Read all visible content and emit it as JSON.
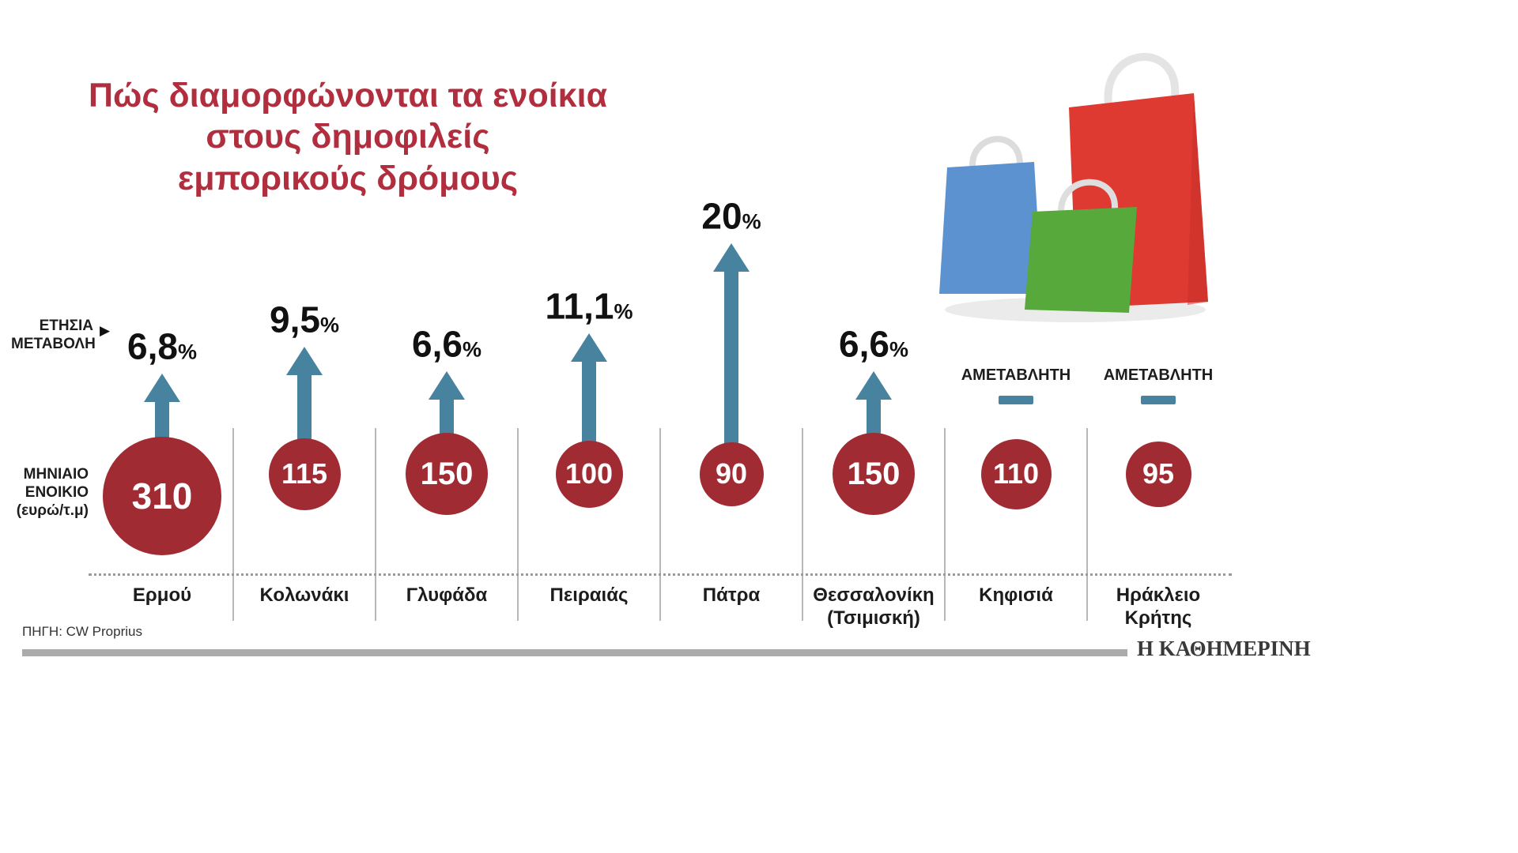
{
  "title": {
    "lines": [
      "Πώς διαμορφώνονται τα ενοίκια",
      "στους δημοφιλείς",
      "εμπορικούς δρόμους"
    ]
  },
  "side_labels": {
    "annual_change_line1": "ΕΤΗΣΙΑ",
    "annual_change_line2": "ΜΕΤΑΒΟΛΗ",
    "monthly_rent_line1": "ΜΗΝΙΑΙΟ",
    "monthly_rent_line2": "ΕΝΟΙΚΙΟ",
    "monthly_rent_line3": "(ευρώ/τ.μ)"
  },
  "unchanged_label": "ΑΜΕΤΑΒΛΗΤΗ",
  "percent_sign": "%",
  "source": "ΠΗΓΗ: CW Proprius",
  "brand": "Η ΚΑΘΗΜΕΡΙΝΗ",
  "colors": {
    "title": "#b12e3e",
    "circle": "#a02b33",
    "arrow": "#47839f",
    "bag_red": "#de3a31",
    "bag_green": "#57a93b",
    "bag_blue": "#5b92cf"
  },
  "chart_data": {
    "type": "bar",
    "title": "Πώς διαμορφώνονται τα ενοίκια στους δημοφιλείς εμπορικούς δρόμους",
    "categories": [
      "Ερμού",
      "Κολωνάκι",
      "Γλυφάδα",
      "Πειραιάς",
      "Πάτρα",
      "Θεσσαλονίκη (Τσιμισκή)",
      "Κηφισιά",
      "Ηράκλειο Κρήτης"
    ],
    "series": [
      {
        "name": "ΜΗΝΙΑΙΟ ΕΝΟΙΚΙΟ (ευρώ/τ.μ)",
        "values": [
          310,
          115,
          150,
          100,
          90,
          150,
          110,
          95
        ]
      },
      {
        "name": "ΕΤΗΣΙΑ ΜΕΤΑΒΟΛΗ (%)",
        "values": [
          6.8,
          9.5,
          6.6,
          11.1,
          20,
          6.6,
          null,
          null
        ]
      }
    ],
    "items": [
      {
        "name_line1": "Ερμού",
        "name_line2": "",
        "rent": "310",
        "rent_value": 310,
        "pct_label": "6,8",
        "pct_value": 6.8,
        "unchanged": false
      },
      {
        "name_line1": "Κολωνάκι",
        "name_line2": "",
        "rent": "115",
        "rent_value": 115,
        "pct_label": "9,5",
        "pct_value": 9.5,
        "unchanged": false
      },
      {
        "name_line1": "Γλυφάδα",
        "name_line2": "",
        "rent": "150",
        "rent_value": 150,
        "pct_label": "6,6",
        "pct_value": 6.6,
        "unchanged": false
      },
      {
        "name_line1": "Πειραιάς",
        "name_line2": "",
        "rent": "100",
        "rent_value": 100,
        "pct_label": "11,1",
        "pct_value": 11.1,
        "unchanged": false
      },
      {
        "name_line1": "Πάτρα",
        "name_line2": "",
        "rent": "90",
        "rent_value": 90,
        "pct_label": "20",
        "pct_value": 20,
        "unchanged": false
      },
      {
        "name_line1": "Θεσσαλονίκη",
        "name_line2": "(Τσιμισκή)",
        "rent": "150",
        "rent_value": 150,
        "pct_label": "6,6",
        "pct_value": 6.6,
        "unchanged": false
      },
      {
        "name_line1": "Κηφισιά",
        "name_line2": "",
        "rent": "110",
        "rent_value": 110,
        "pct_label": null,
        "pct_value": null,
        "unchanged": true
      },
      {
        "name_line1": "Ηράκλειο",
        "name_line2": "Κρήτης",
        "rent": "95",
        "rent_value": 95,
        "pct_label": null,
        "pct_value": null,
        "unchanged": true
      }
    ]
  }
}
